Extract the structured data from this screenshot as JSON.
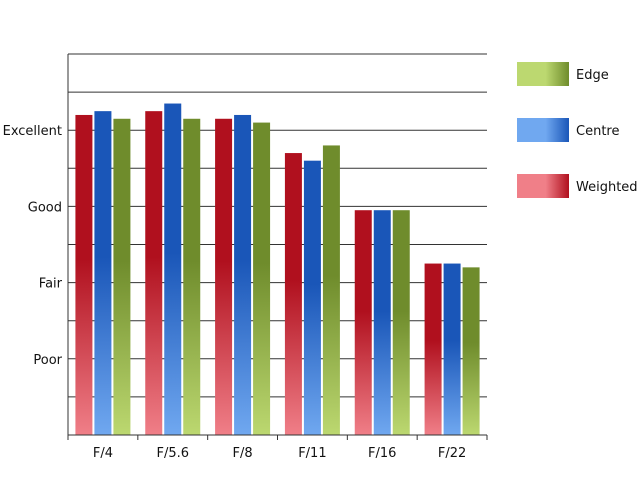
{
  "chart_data": {
    "type": "bar",
    "title": "",
    "xlabel": "",
    "ylabel": "",
    "categories": [
      "F/4",
      "F/5.6",
      "F/8",
      "F/11",
      "F/16",
      "F/22"
    ],
    "ylim": [
      0,
      10
    ],
    "y_tick_labels": [
      {
        "label": "Poor",
        "value": 2
      },
      {
        "label": "Fair",
        "value": 4
      },
      {
        "label": "Good",
        "value": 6
      },
      {
        "label": "Excellent",
        "value": 8
      }
    ],
    "grid": true,
    "legend_position": "right",
    "series": [
      {
        "name": "Weighted",
        "values": [
          8.4,
          8.5,
          8.3,
          7.4,
          5.9,
          4.5
        ],
        "color_dark": "#b0101e",
        "color_light": "#f07f88"
      },
      {
        "name": "Centre",
        "values": [
          8.5,
          8.7,
          8.4,
          7.2,
          5.9,
          4.5
        ],
        "color_dark": "#1a56b8",
        "color_light": "#70a8f0"
      },
      {
        "name": "Edge",
        "values": [
          8.3,
          8.3,
          8.2,
          7.6,
          5.9,
          4.4
        ],
        "color_dark": "#6f8c2c",
        "color_light": "#bcd870"
      }
    ]
  },
  "legend": {
    "items": [
      "Edge",
      "Centre",
      "Weighted"
    ]
  }
}
